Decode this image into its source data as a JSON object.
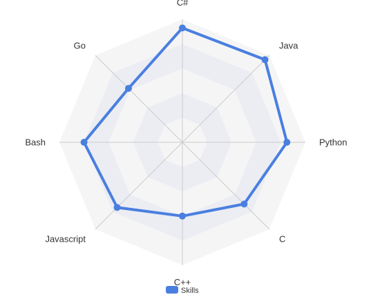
{
  "chart_data": {
    "type": "radar",
    "indicators": [
      "C#",
      "Java",
      "Python",
      "C",
      "C++",
      "Javascript",
      "Bash",
      "Go"
    ],
    "max": 100,
    "split_number": 5,
    "series": [
      {
        "name": "Skills",
        "values": [
          93,
          95,
          85,
          71,
          60,
          75,
          80,
          62
        ]
      }
    ],
    "legend": {
      "items": [
        "Skills"
      ],
      "position": "bottom-center"
    },
    "colors": {
      "series": "#4a7fe0",
      "band_dark": "#ebedf3",
      "band_light": "#f5f5f6",
      "axis_line": "#cccccc",
      "label": "#333333"
    }
  }
}
